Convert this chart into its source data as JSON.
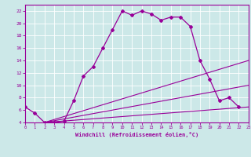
{
  "xlabel": "Windchill (Refroidissement éolien,°C)",
  "bg_color": "#cce8e8",
  "line_color": "#990099",
  "ylim": [
    4,
    23
  ],
  "xlim": [
    0,
    23
  ],
  "yticks": [
    4,
    6,
    8,
    10,
    12,
    14,
    16,
    18,
    20,
    22
  ],
  "xticks": [
    0,
    1,
    2,
    3,
    4,
    5,
    6,
    7,
    8,
    9,
    10,
    11,
    12,
    13,
    14,
    15,
    16,
    17,
    18,
    19,
    20,
    21,
    22,
    23
  ],
  "line1_x": [
    0,
    1,
    2,
    3,
    4,
    5,
    6,
    7,
    8,
    9,
    10,
    11,
    12,
    13,
    14,
    15,
    16,
    17,
    18,
    19,
    20,
    21,
    22
  ],
  "line1_y": [
    6.5,
    5.5,
    4.0,
    4.0,
    4.2,
    7.5,
    11.5,
    13.0,
    16.0,
    19.0,
    22.0,
    21.3,
    22.0,
    21.5,
    20.5,
    21.0,
    21.0,
    19.5,
    14.0,
    11.0,
    7.5,
    8.0,
    6.5
  ],
  "line2_x": [
    2,
    23
  ],
  "line2_y": [
    4.0,
    10.0
  ],
  "line3_x": [
    2,
    23
  ],
  "line3_y": [
    4.0,
    6.5
  ],
  "line4_x": [
    2,
    23
  ],
  "line4_y": [
    4.0,
    14.0
  ]
}
